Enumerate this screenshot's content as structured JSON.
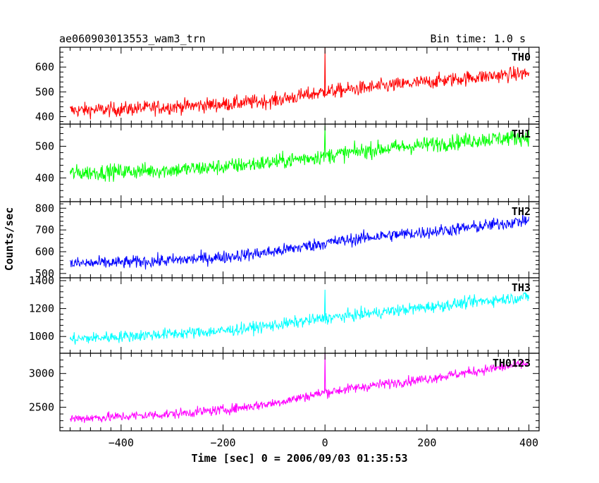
{
  "chart_data": {
    "type": "line",
    "title": "ae060903013553_wam3_trn",
    "subtitle": "Bin time: 1.0 s",
    "xlabel": "Time [sec] 0 = 2006/09/03 01:35:53",
    "ylabel": "Counts/sec",
    "xlim": [
      -520,
      420
    ],
    "x_ticks": [
      -400,
      -200,
      0,
      200,
      400
    ],
    "x_tick_labels": [
      "−400",
      "−200",
      "0",
      "200",
      "400"
    ],
    "panels": [
      {
        "name": "TH0",
        "color": "#ff0000",
        "ylim": [
          370,
          680
        ],
        "y_ticks": [
          400,
          500,
          600
        ],
        "y_tick_labels": [
          "400",
          "500",
          "600"
        ],
        "x": [
          -500,
          -400,
          -300,
          -200,
          -100,
          0,
          100,
          200,
          300,
          400
        ],
        "values": [
          425,
          430,
          440,
          450,
          465,
          500,
          520,
          540,
          560,
          575
        ],
        "noise": 28,
        "spike": {
          "x": 0,
          "value": 678
        }
      },
      {
        "name": "TH1",
        "color": "#00ff00",
        "ylim": [
          325,
          570
        ],
        "y_ticks": [
          400,
          500
        ],
        "y_tick_labels": [
          "400",
          "500"
        ],
        "x": [
          -500,
          -400,
          -300,
          -200,
          -100,
          0,
          100,
          200,
          300,
          400
        ],
        "values": [
          415,
          420,
          425,
          435,
          450,
          470,
          490,
          505,
          520,
          530
        ],
        "noise": 24,
        "spike": {
          "x": 0,
          "value": 565
        }
      },
      {
        "name": "TH2",
        "color": "#0000ff",
        "ylim": [
          480,
          830
        ],
        "y_ticks": [
          500,
          600,
          700,
          800
        ],
        "y_tick_labels": [
          "500",
          "600",
          "700",
          "800"
        ],
        "x": [
          -500,
          -400,
          -300,
          -200,
          -100,
          0,
          100,
          200,
          300,
          400
        ],
        "values": [
          545,
          550,
          560,
          575,
          600,
          640,
          670,
          690,
          715,
          745
        ],
        "noise": 28
      },
      {
        "name": "TH3",
        "color": "#00ffff",
        "ylim": [
          880,
          1420
        ],
        "y_ticks": [
          1000,
          1200,
          1400
        ],
        "y_tick_labels": [
          "1000",
          "1200",
          "1400"
        ],
        "x": [
          -500,
          -400,
          -300,
          -200,
          -100,
          0,
          100,
          200,
          300,
          400
        ],
        "values": [
          980,
          1000,
          1020,
          1040,
          1080,
          1130,
          1170,
          1210,
          1250,
          1285
        ],
        "noise": 40,
        "spike": {
          "x": 0,
          "value": 1335
        }
      },
      {
        "name": "TH0123",
        "color": "#ff00ff",
        "ylim": [
          2150,
          3300
        ],
        "y_ticks": [
          2500,
          3000
        ],
        "y_tick_labels": [
          "2500",
          "3000"
        ],
        "x": [
          -500,
          -400,
          -300,
          -200,
          -100,
          0,
          100,
          200,
          300,
          400
        ],
        "values": [
          2330,
          2360,
          2400,
          2460,
          2560,
          2720,
          2830,
          2920,
          3040,
          3150
        ],
        "noise": 70,
        "spike": {
          "x": 0,
          "value": 3300
        }
      }
    ]
  }
}
